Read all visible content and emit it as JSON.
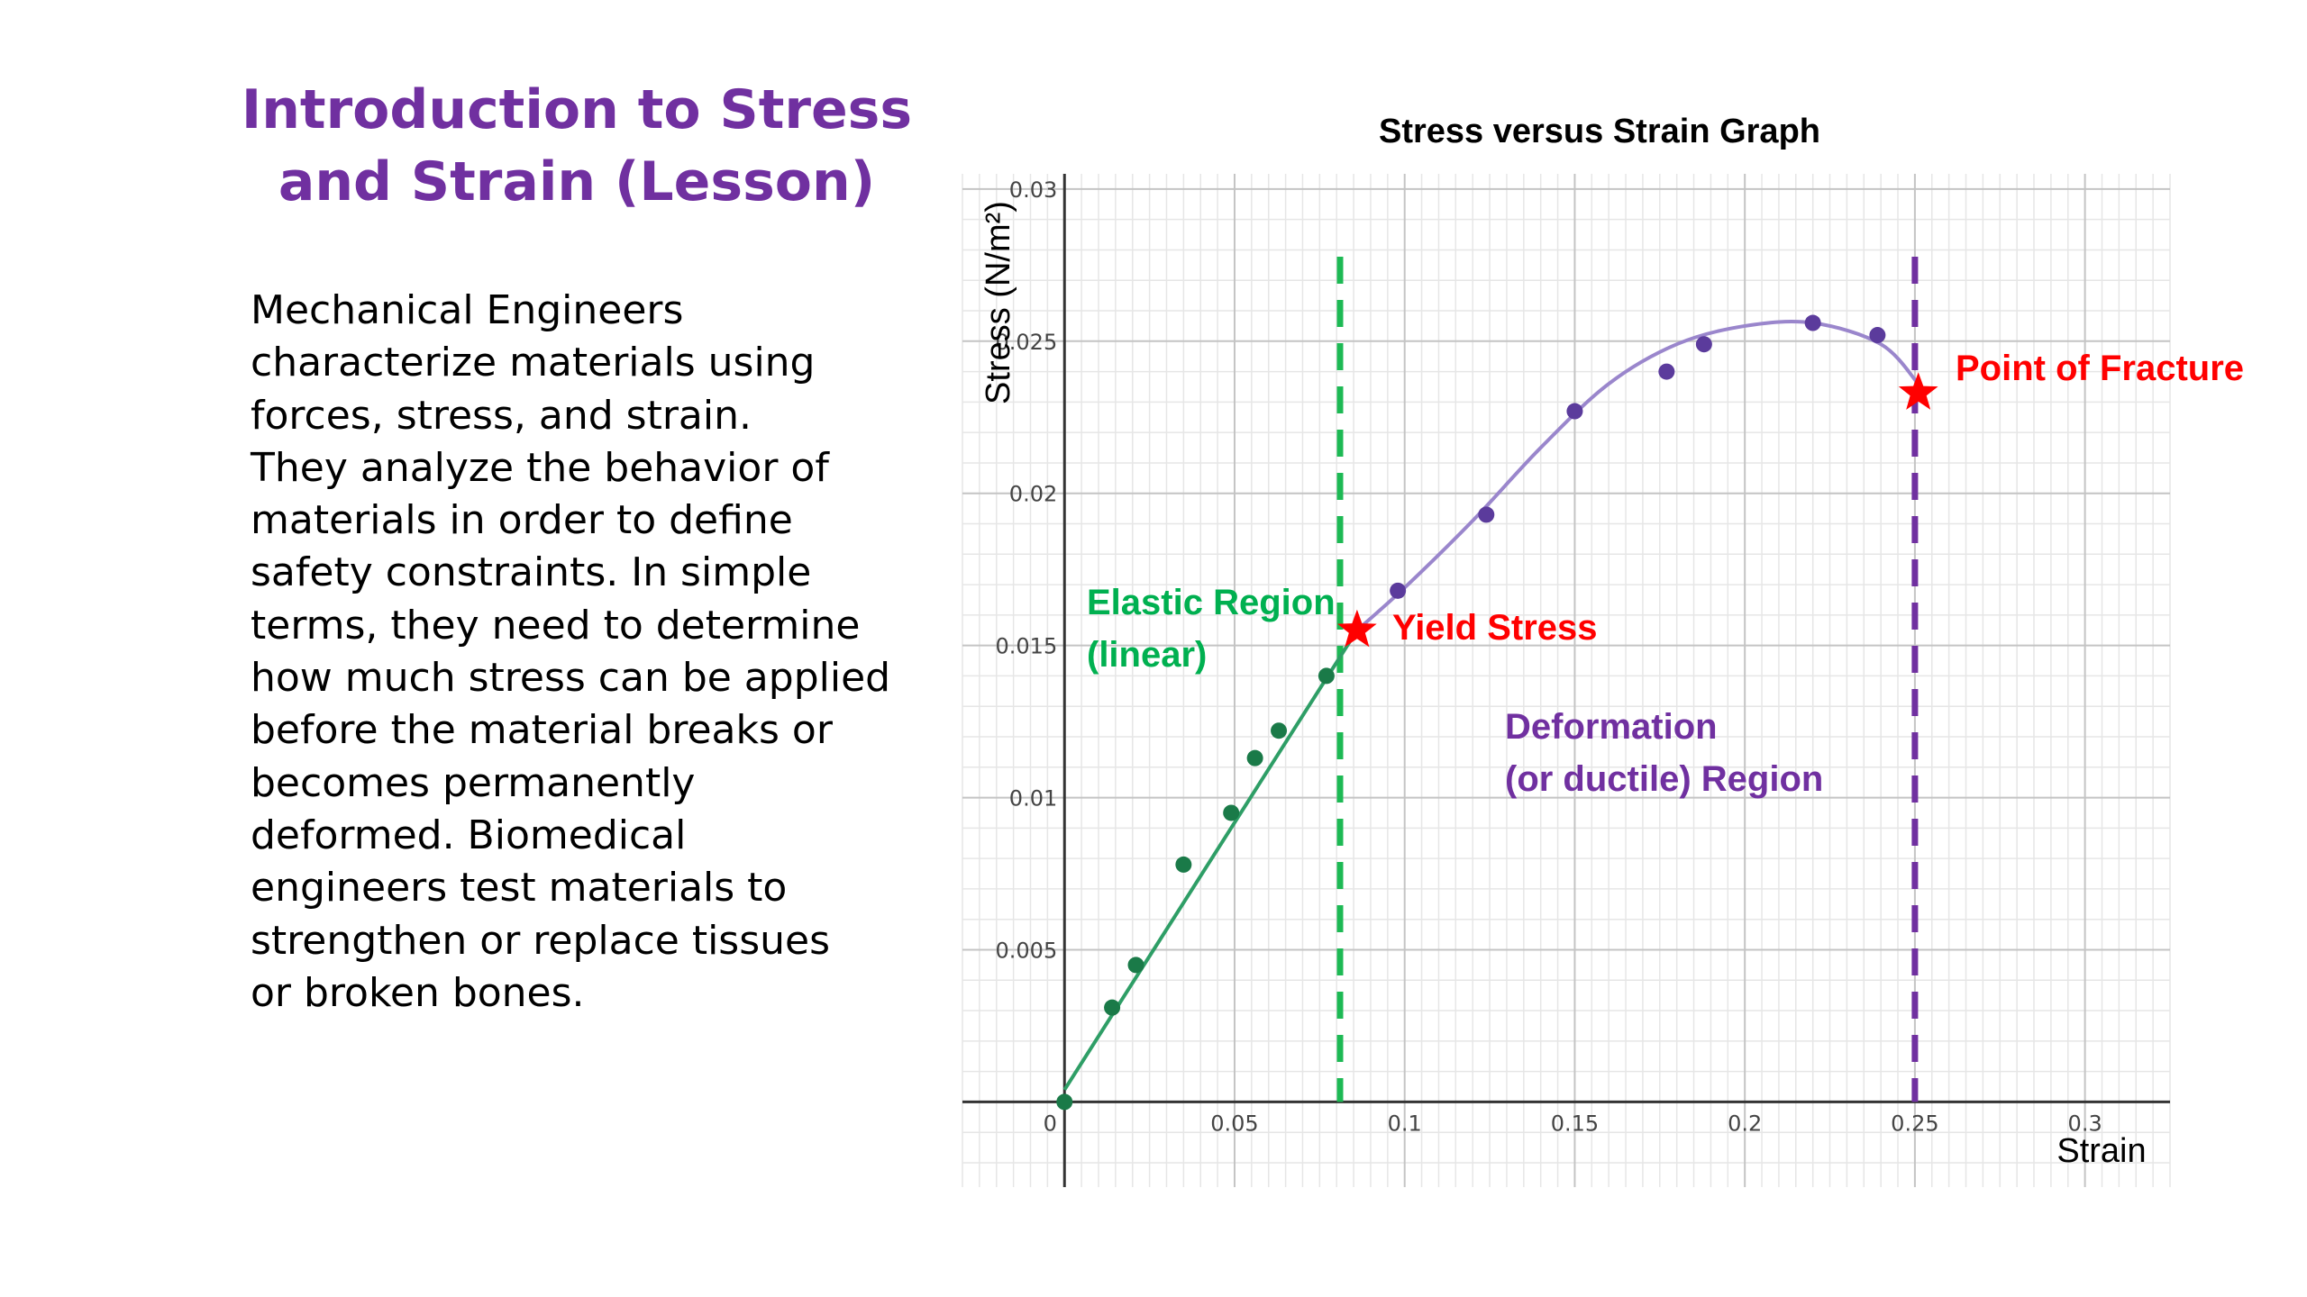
{
  "slide": {
    "title_lines": [
      "Introduction to Stress",
      "and Strain (Lesson)"
    ],
    "body_lines": [
      "Mechanical Engineers",
      "characterize materials using",
      "forces, stress, and strain.",
      "They analyze the behavior of",
      "materials in order to define",
      "safety constraints.  In simple",
      "terms, they need to determine",
      "how much stress can be applied",
      "before the material breaks or",
      "becomes permanently",
      "deformed.  Biomedical",
      "engineers test materials to",
      "strengthen or replace tissues",
      "or broken bones."
    ]
  },
  "chart_data": {
    "type": "scatter",
    "title": "Stress versus Strain Graph",
    "xlabel": "Strain",
    "ylabel": "Stress (N/m²)",
    "xlim": [
      -0.03,
      0.325
    ],
    "ylim": [
      -0.0028,
      0.0305
    ],
    "x_ticks": [
      0,
      0.05,
      0.1,
      0.15,
      0.2,
      0.25,
      0.3
    ],
    "x_tick_labels": [
      "0",
      "0.05",
      "0.1",
      "0.15",
      "0.2",
      "0.25",
      "0.3"
    ],
    "y_ticks": [
      0.005,
      0.01,
      0.015,
      0.02,
      0.025,
      0.03
    ],
    "y_tick_labels": [
      "0.005",
      "0.01",
      "0.015",
      "0.02",
      "0.025",
      "0.03"
    ],
    "grid": true,
    "colors": {
      "elastic": "#2e9e66",
      "elastic_point": "#1a7a48",
      "ductile": "#9a86cc",
      "ductile_point": "#5b3b9c",
      "elastic_divider": "#1db954",
      "fracture_divider": "#7030a0",
      "marker": "#ff0000"
    },
    "series": [
      {
        "region": "elastic",
        "points": [
          [
            0,
            0
          ],
          [
            0.014,
            0.0031
          ],
          [
            0.021,
            0.0045
          ],
          [
            0.035,
            0.0078
          ],
          [
            0.049,
            0.0095
          ],
          [
            0.056,
            0.0113
          ],
          [
            0.063,
            0.0122
          ],
          [
            0.077,
            0.014
          ]
        ]
      },
      {
        "region": "ductile",
        "points": [
          [
            0.098,
            0.0168
          ],
          [
            0.124,
            0.0193
          ],
          [
            0.15,
            0.0227
          ],
          [
            0.177,
            0.024
          ],
          [
            0.188,
            0.0249
          ],
          [
            0.22,
            0.0256
          ],
          [
            0.239,
            0.0252
          ]
        ]
      }
    ],
    "elastic_fit": [
      [
        0,
        0.0004
      ],
      [
        0.086,
        0.0155
      ]
    ],
    "ductile_curve": [
      [
        0.086,
        0.0155
      ],
      [
        0.1,
        0.0169
      ],
      [
        0.12,
        0.0191
      ],
      [
        0.14,
        0.0215
      ],
      [
        0.16,
        0.0236
      ],
      [
        0.18,
        0.0249
      ],
      [
        0.2,
        0.0255
      ],
      [
        0.22,
        0.0256
      ],
      [
        0.24,
        0.0249
      ],
      [
        0.251,
        0.0236
      ]
    ],
    "dividers": [
      {
        "id": "elastic-limit",
        "x": 0.081,
        "color": "#1db954"
      },
      {
        "id": "fracture-limit",
        "x": 0.25,
        "color": "#7030a0"
      }
    ],
    "markers": [
      {
        "id": "yield",
        "label": "Yield Stress",
        "x": 0.086,
        "y": 0.0155
      },
      {
        "id": "fracture",
        "label": "Point of Fracture",
        "x": 0.251,
        "y": 0.0233
      }
    ],
    "annotations": [
      {
        "id": "elastic",
        "lines": [
          "Elastic Region",
          "(linear)"
        ],
        "color": "#00b050"
      },
      {
        "id": "ductile",
        "lines": [
          "Deformation",
          "(or ductile) Region"
        ],
        "color": "#7030a0"
      }
    ]
  }
}
